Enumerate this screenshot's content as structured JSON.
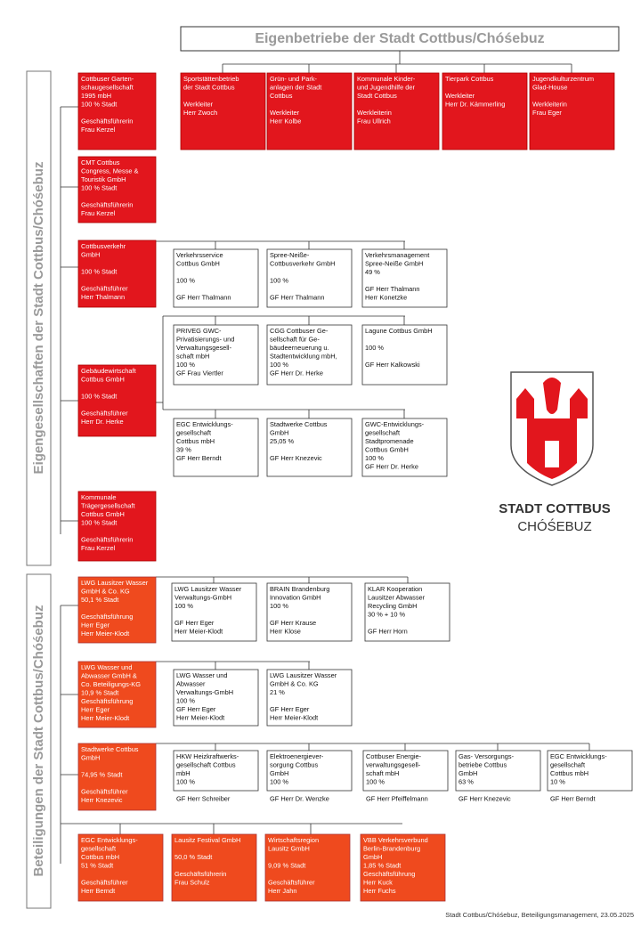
{
  "header": {
    "title": "Eigenbetriebe der Stadt Cottbus/Chóśebuz"
  },
  "side_labels": [
    "Eigengesellschaften der Stadt Cottbus/Chóśebuz",
    "Beteiligungen der Stadt Cottbus/Chóśebuz"
  ],
  "logo": {
    "name": "STADT COTTBUS",
    "subname": "CHÓŚEBUZ"
  },
  "footer": "Stadt Cottbus/Chóśebuz, Beteiligungsmanagement, 23.05.2025",
  "boxes": [
    {
      "blocks": [
        [
          "Sportstättenbetrieb",
          "der Stadt Cottbus"
        ],
        [
          "Werkleiter",
          "Herr Zwoch"
        ]
      ]
    },
    {
      "blocks": [
        [
          "Grün- und Park-",
          "anlagen der Stadt",
          "Cottbus"
        ],
        [
          "Werkleiter",
          "Herr Kolbe"
        ]
      ]
    },
    {
      "blocks": [
        [
          "Kommunale Kinder-",
          "und Jugendhilfe der",
          "Stadt Cottbus"
        ],
        [
          "Werkleiterin",
          "Frau Ullrich"
        ]
      ]
    },
    {
      "blocks": [
        [
          "Tierpark Cottbus"
        ],
        [
          "Werkleiter",
          "Herr Dr. Kämmerling"
        ]
      ]
    },
    {
      "blocks": [
        [
          "Jugendkulturzentrum",
          "Glad-House"
        ],
        [
          "Werkleiterin",
          "Frau Eger"
        ]
      ]
    },
    {
      "blocks": [
        [
          "Cottbuser Garten-",
          "schaugesellschaft",
          "1995 mbH",
          "100 % Stadt"
        ],
        [
          "Geschäftsführerin",
          "Frau Kerzel"
        ]
      ]
    },
    {
      "blocks": [
        [
          "CMT Cottbus",
          "Congress, Messe &",
          "Touristik GmbH",
          "100 % Stadt"
        ],
        [
          "Geschäftsführerin",
          "Frau Kerzel"
        ]
      ]
    },
    {
      "blocks": [
        [
          "Cottbusverkehr",
          "GmbH"
        ],
        [
          "100 % Stadt"
        ],
        [
          "Geschäftsführer",
          "Herr Thalmann"
        ]
      ]
    },
    {
      "blocks": [
        [
          "Gebäudewirtschaft",
          "Cottbus GmbH"
        ],
        [
          "100 % Stadt"
        ],
        [
          "Geschäftsführer",
          "Herr Dr. Herke"
        ]
      ]
    },
    {
      "blocks": [
        [
          "Kommunale",
          "Trägergesellschaft",
          "Cottbus GmbH",
          "100 % Stadt"
        ],
        [
          "Geschäftsführerin",
          "Frau Kerzel"
        ]
      ]
    },
    {
      "blocks": [
        [
          "Verkehrsservice",
          "Cottbus GmbH"
        ],
        [
          "100 %"
        ],
        [
          "GF Herr Thalmann"
        ]
      ]
    },
    {
      "blocks": [
        [
          "Spree-Neiße-",
          "Cottbusverkehr GmbH"
        ],
        [
          "100 %"
        ],
        [
          "GF Herr Thalmann"
        ]
      ]
    },
    {
      "blocks": [
        [
          "Verkehrsmanagement",
          "Spree-Neiße GmbH",
          "49 %"
        ],
        [
          "GF Herr Thalmann",
          "Herr Konetzke"
        ]
      ]
    },
    {
      "blocks": [
        [
          "PRIVEG GWC-",
          "Privatisierungs- und",
          "Verwaltungsgesell-",
          "schaft mbH",
          "100 %",
          "GF Frau Viertler"
        ]
      ]
    },
    {
      "blocks": [
        [
          "CGG Cottbuser Ge-",
          "sellschaft für Ge-",
          "bäudeerneuerung u.",
          "Stadtentwicklung mbH,",
          "100 %",
          "GF Herr Dr. Herke"
        ]
      ]
    },
    {
      "blocks": [
        [
          "Lagune Cottbus GmbH"
        ],
        [
          "100 %"
        ],
        [
          "GF Herr Kalkowski"
        ]
      ]
    },
    {
      "blocks": [
        [
          "EGC Entwicklungs-",
          "gesellschaft",
          "Cottbus mbH",
          "39 %",
          "GF Herr Berndt"
        ]
      ]
    },
    {
      "blocks": [
        [
          "Stadtwerke Cottbus",
          "GmbH",
          "25,05 %"
        ],
        [
          "GF Herr Knezevic"
        ]
      ]
    },
    {
      "blocks": [
        [
          "GWC-Entwicklungs-",
          "gesellschaft",
          "Stadtpromenade",
          "Cottbus GmbH",
          "100 %",
          "GF Herr Dr. Herke"
        ]
      ]
    },
    {
      "blocks": [
        [
          "LWG Lausitzer Wasser",
          "GmbH & Co. KG",
          "50,1 % Stadt"
        ],
        [
          "Geschäftsführung",
          "Herr Eger",
          "Herr Meier-Klodt"
        ]
      ]
    },
    {
      "blocks": [
        [
          "LWG Lausitzer Wasser",
          "Verwaltungs-GmbH",
          "100 %"
        ],
        [
          "GF Herr Eger",
          "Herr Meier-Klodt"
        ]
      ]
    },
    {
      "blocks": [
        [
          "BRAIN Brandenburg",
          "Innovation GmbH",
          "100 %"
        ],
        [
          "GF Herr Krause",
          "Herr Klose"
        ]
      ]
    },
    {
      "blocks": [
        [
          "KLAR Kooperation",
          "Lausitzer Abwasser",
          "Recycling GmbH",
          "30 % + 10 %"
        ],
        [
          "GF Herr Horn"
        ]
      ]
    },
    {
      "blocks": [
        [
          "LWG Wasser und",
          "Abwasser GmbH &",
          "Co. Beteiligungs-KG",
          "10,9 % Stadt",
          "Geschäftsführung",
          "Herr Eger",
          "Herr Meier-Klodt"
        ]
      ]
    },
    {
      "blocks": [
        [
          "LWG Wasser und",
          "Abwasser",
          "Verwaltungs-GmbH",
          "100 %",
          "GF Herr Eger",
          "Herr Meier-Klodt"
        ]
      ]
    },
    {
      "blocks": [
        [
          "LWG Lausitzer Wasser",
          "GmbH & Co. KG",
          "21 %"
        ],
        [
          "GF Herr Eger",
          "Herr Meier-Klodt"
        ]
      ]
    },
    {
      "blocks": [
        [
          "Stadtwerke Cottbus",
          "GmbH"
        ],
        [
          "74,95 % Stadt"
        ],
        [
          "Geschäftsführer",
          "Herr Knezevic"
        ]
      ]
    },
    {
      "blocks": [
        [
          "HKW Heizkraftwerks-",
          "gesellschaft Cottbus",
          "mbH",
          "100 %"
        ],
        [
          "GF Herr Schreiber"
        ]
      ]
    },
    {
      "blocks": [
        [
          "Elektroenergiever-",
          "sorgung Cottbus",
          "GmbH",
          "100 %"
        ],
        [
          "GF Herr Dr. Wenzke"
        ]
      ]
    },
    {
      "blocks": [
        [
          "Cottbuser Energie-",
          "verwaltungsgesell-",
          "schaft mbH",
          "100 %"
        ],
        [
          "GF Herr Pfeiffelmann"
        ]
      ]
    },
    {
      "blocks": [
        [
          "Gas- Versorgungs-",
          "betriebe Cottbus",
          "GmbH",
          "63 %"
        ],
        [
          "GF Herr Knezevic"
        ]
      ]
    },
    {
      "blocks": [
        [
          "EGC Entwicklungs-",
          "gesellschaft",
          "Cottbus mbH",
          "10 %"
        ],
        [
          "GF Herr Berndt"
        ]
      ]
    },
    {
      "blocks": [
        [
          "EGC Entwicklungs-",
          "gesellschaft",
          "Cottbus mbH",
          "51 % Stadt"
        ],
        [
          "Geschäftsführer",
          "Herr Berndt"
        ]
      ]
    },
    {
      "blocks": [
        [
          "Lausitz Festival GmbH"
        ],
        [
          "50,0 % Stadt"
        ],
        [
          "Geschäftsführerin",
          "Frau Schulz"
        ]
      ]
    },
    {
      "blocks": [
        [
          "Wirtschaftsregion",
          "Lausitz GmbH"
        ],
        [
          "9,09 % Stadt"
        ],
        [
          "Geschäftsführer",
          "Herr Jahn"
        ]
      ]
    },
    {
      "blocks": [
        [
          "VBB Verkehrsverbund",
          "Berlin-Brandenburg",
          "GmbH",
          "1,85 % Stadt",
          "Geschäftsführung",
          "Herr Kuck",
          "Herr Fuchs"
        ]
      ]
    }
  ]
}
